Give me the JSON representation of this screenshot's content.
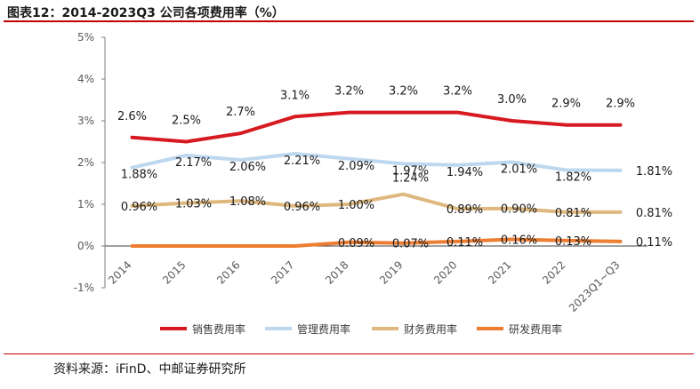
{
  "header": {
    "title": "图表12：2014-2023Q3 公司各项费用率（%）"
  },
  "footer": {
    "source": "资料来源：iFinD、中邮证券研究所"
  },
  "chart_data": {
    "type": "line",
    "categories": [
      "2014",
      "2015",
      "2016",
      "2017",
      "2018",
      "2019",
      "2020",
      "2021",
      "2022",
      "2023Q1~Q3"
    ],
    "ylim": [
      -1,
      5
    ],
    "yticks": [
      "-1%",
      "0%",
      "1%",
      "2%",
      "3%",
      "4%",
      "5%"
    ],
    "ytick_values": [
      -1,
      0,
      1,
      2,
      3,
      4,
      5
    ],
    "grid": false,
    "legend_position": "bottom",
    "series": [
      {
        "name": "销售费用率",
        "color": "#d71920",
        "values": [
          2.6,
          2.5,
          2.7,
          3.1,
          3.2,
          3.2,
          3.2,
          3.0,
          2.9,
          2.9
        ],
        "labels": [
          "2.6%",
          "2.5%",
          "2.7%",
          "3.1%",
          "3.2%",
          "3.2%",
          "3.2%",
          "3.0%",
          "2.9%",
          "2.9%"
        ]
      },
      {
        "name": "管理费用率",
        "color": "#bdd7ee",
        "values": [
          1.88,
          2.17,
          2.06,
          2.21,
          2.09,
          1.97,
          1.94,
          2.01,
          1.82,
          1.81
        ],
        "labels": [
          "1.88%",
          "2.17%",
          "2.06%",
          "2.21%",
          "2.09%",
          "1.97%",
          "1.94%",
          "2.01%",
          "1.82%",
          "1.81%"
        ]
      },
      {
        "name": "财务费用率",
        "color": "#dfb87f",
        "values": [
          0.96,
          1.03,
          1.08,
          0.96,
          1.0,
          1.24,
          0.89,
          0.9,
          0.81,
          0.81
        ],
        "labels": [
          "0.96%",
          "1.03%",
          "1.08%",
          "0.96%",
          "1.00%",
          "1.24%",
          "0.89%",
          "0.90%",
          "0.81%",
          "0.81%"
        ]
      },
      {
        "name": "研发费用率",
        "color": "#ed7d31",
        "values": [
          0.0,
          0.0,
          0.0,
          0.0,
          0.09,
          0.07,
          0.11,
          0.16,
          0.13,
          0.11
        ],
        "labels": [
          "",
          "",
          "",
          "",
          "0.09%",
          "0.07%",
          "0.11%",
          "0.16%",
          "0.13%",
          "0.11%"
        ]
      }
    ]
  }
}
